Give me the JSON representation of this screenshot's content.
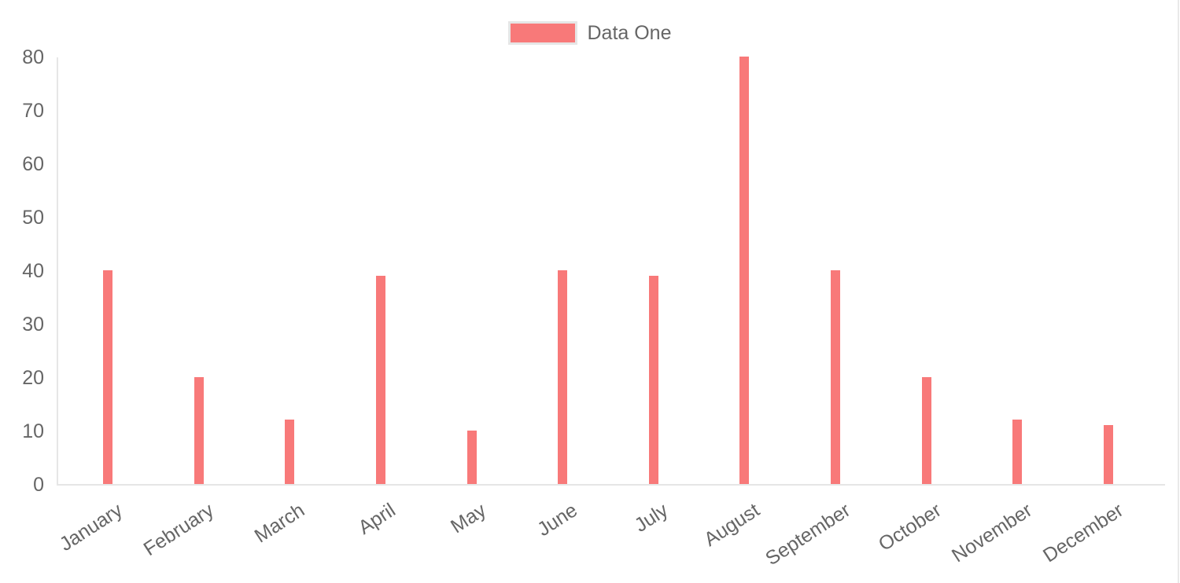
{
  "chart_data": {
    "type": "bar",
    "title": "",
    "categories": [
      "January",
      "February",
      "March",
      "April",
      "May",
      "June",
      "July",
      "August",
      "September",
      "October",
      "November",
      "December"
    ],
    "series": [
      {
        "name": "Data One",
        "color": "#f87979",
        "values": [
          40,
          20,
          12,
          39,
          10,
          40,
          39,
          80,
          40,
          20,
          12,
          11
        ]
      }
    ],
    "xlabel": "",
    "ylabel": "",
    "ylim": [
      0,
      80
    ],
    "yticks": [
      0,
      10,
      20,
      30,
      40,
      50,
      60,
      70,
      80
    ],
    "grid": false,
    "legend_position": "top-center",
    "x_label_rotation_deg": -33
  },
  "legend": {
    "label": "Data One",
    "swatch_color": "#f87979",
    "swatch_border_color": "#e6e6e6"
  },
  "colors": {
    "bar": "#f87979",
    "axis_line": "#e6e6e6",
    "tick_text": "#666666",
    "background": "#ffffff"
  }
}
